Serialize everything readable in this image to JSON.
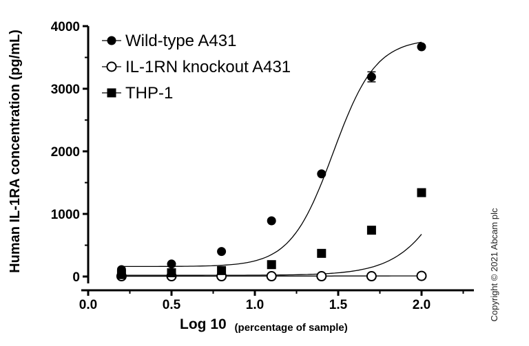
{
  "chart_data": {
    "type": "scatter",
    "title": "",
    "xlabel_main": "Log 10",
    "xlabel_sub": "(percentage of sample)",
    "ylabel": "Human IL-1RA concentration (pg/mL)",
    "xlim": [
      0.0,
      2.0
    ],
    "ylim": [
      0,
      4000
    ],
    "x_ticks": [
      "0.0",
      "0.5",
      "1.0",
      "1.5",
      "2.0"
    ],
    "y_ticks": [
      "0",
      "1000",
      "2000",
      "3000",
      "4000"
    ],
    "legend_position": "top-left",
    "series": [
      {
        "name": "Wild-type A431",
        "marker": "filled-circle",
        "x": [
          0.2,
          0.5,
          0.8,
          1.1,
          1.4,
          1.7,
          2.0
        ],
        "y": [
          110,
          200,
          400,
          890,
          1640,
          3190,
          3670
        ],
        "error": [
          0,
          0,
          0,
          0,
          0,
          80,
          0
        ]
      },
      {
        "name": "IL-1RN knockout A431",
        "marker": "open-circle",
        "x": [
          0.2,
          0.5,
          0.8,
          1.1,
          1.4,
          1.7,
          2.0
        ],
        "y": [
          5,
          5,
          5,
          5,
          5,
          5,
          10
        ],
        "error": [
          0,
          0,
          0,
          0,
          0,
          0,
          0
        ]
      },
      {
        "name": "THP-1",
        "marker": "filled-square",
        "x": [
          0.2,
          0.5,
          0.8,
          1.1,
          1.4,
          1.7,
          2.0
        ],
        "y": [
          30,
          60,
          95,
          190,
          370,
          740,
          1340
        ],
        "error": [
          0,
          0,
          0,
          0,
          0,
          0,
          0
        ]
      }
    ],
    "copyright": "Copyright © 2021 Abcam plc"
  }
}
